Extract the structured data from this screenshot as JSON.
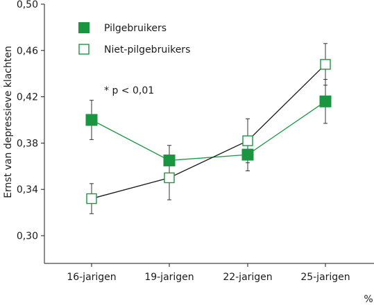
{
  "chart_data": {
    "type": "line",
    "categories": [
      "16-jarigen",
      "19-jarigen",
      "22-jarigen",
      "25-jarigen"
    ],
    "ylabel": "Ernst van depressieve klachten",
    "xlabel": "",
    "x_unit": "%",
    "ylim": [
      0.3,
      0.5
    ],
    "yticks": [
      "0,30",
      "0,34",
      "0,38",
      "0,42",
      "0,46",
      "0,50"
    ],
    "annotation": "* p < 0,01",
    "legend_position": "top-left",
    "grid": false,
    "series": [
      {
        "name": "Pilgebruikers",
        "marker": "filled-square",
        "color": "#1a9641",
        "line_color": "#1a9641",
        "values": [
          0.4,
          0.365,
          0.37,
          0.416
        ],
        "err_low": [
          0.383,
          0.352,
          0.356,
          0.397
        ],
        "err_high": [
          0.417,
          0.378,
          0.384,
          0.435
        ]
      },
      {
        "name": "Niet-pilgebruikers",
        "marker": "open-square",
        "color": "#1a9641",
        "line_color": "#1a1a1a",
        "values": [
          0.332,
          0.35,
          0.382,
          0.448
        ],
        "err_low": [
          0.319,
          0.331,
          0.363,
          0.43
        ],
        "err_high": [
          0.345,
          0.369,
          0.401,
          0.466
        ]
      }
    ]
  }
}
